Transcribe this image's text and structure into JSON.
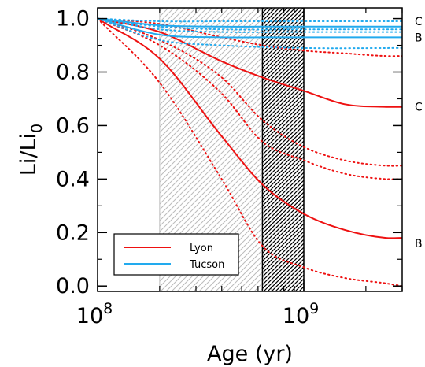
{
  "chart_data": {
    "type": "line",
    "xlabel": "Age (yr)",
    "ylabel": {
      "main": "Li/Li",
      "sub": "0"
    },
    "x_scale": "log",
    "xlim": [
      100000000,
      3000000000
    ],
    "ylim": [
      -0.02,
      1.04
    ],
    "x_ticks": [
      {
        "value": 100000000,
        "base": "10",
        "exp": "8"
      },
      {
        "value": 1000000000,
        "base": "10",
        "exp": "9"
      }
    ],
    "y_ticks": [
      {
        "value": 0.0,
        "label": "0.0"
      },
      {
        "value": 0.2,
        "label": "0.2"
      },
      {
        "value": 0.4,
        "label": "0.4"
      },
      {
        "value": 0.6,
        "label": "0.6"
      },
      {
        "value": 0.8,
        "label": "0.8"
      },
      {
        "value": 1.0,
        "label": "1.0"
      }
    ],
    "colors": {
      "lyon": "#ee1111",
      "tucson": "#22aaee",
      "light_hatch": "#bbbbbb",
      "dark_hatch": "#000000"
    },
    "regions": [
      {
        "kind": "light-hatch",
        "x": [
          200000000,
          630000000
        ]
      },
      {
        "kind": "dark-hatch",
        "x": [
          630000000,
          1000000000
        ]
      }
    ],
    "legend": {
      "position": "bottom-left",
      "entries": [
        {
          "name": "Lyon",
          "color": "#ee1111"
        },
        {
          "name": "Tucson",
          "color": "#22aaee"
        }
      ]
    },
    "series": [
      {
        "family": "lyon",
        "style": "solid",
        "tag": "C",
        "x": [
          100000000,
          200000000,
          400000000,
          630000000,
          1000000000,
          1580000000,
          2500000000,
          3000000000
        ],
        "y": [
          1.0,
          0.95,
          0.84,
          0.78,
          0.73,
          0.68,
          0.67,
          0.67
        ]
      },
      {
        "family": "lyon",
        "style": "solid",
        "tag": "B",
        "x": [
          100000000,
          200000000,
          400000000,
          630000000,
          1000000000,
          1580000000,
          2500000000,
          3000000000
        ],
        "y": [
          1.0,
          0.85,
          0.56,
          0.38,
          0.27,
          0.21,
          0.18,
          0.18
        ]
      },
      {
        "family": "lyon",
        "style": "dotted",
        "x": [
          100000000,
          200000000,
          400000000,
          630000000,
          1000000000,
          1580000000,
          2500000000,
          3000000000
        ],
        "y": [
          1.0,
          0.98,
          0.93,
          0.9,
          0.88,
          0.87,
          0.86,
          0.86
        ]
      },
      {
        "family": "lyon",
        "style": "dotted",
        "x": [
          100000000,
          200000000,
          400000000,
          630000000,
          1000000000,
          1580000000,
          2500000000,
          3000000000
        ],
        "y": [
          1.0,
          0.92,
          0.78,
          0.62,
          0.52,
          0.47,
          0.45,
          0.45
        ]
      },
      {
        "family": "lyon",
        "style": "dotted",
        "x": [
          100000000,
          200000000,
          400000000,
          630000000,
          1000000000,
          1580000000,
          2500000000,
          3000000000
        ],
        "y": [
          1.0,
          0.9,
          0.72,
          0.54,
          0.47,
          0.42,
          0.4,
          0.4
        ]
      },
      {
        "family": "lyon",
        "style": "dotted",
        "x": [
          100000000,
          200000000,
          400000000,
          630000000,
          1000000000,
          1580000000,
          2500000000,
          3000000000
        ],
        "y": [
          1.0,
          0.76,
          0.4,
          0.15,
          0.07,
          0.03,
          0.01,
          0.0
        ]
      },
      {
        "family": "tucson",
        "style": "solid",
        "tag": "C",
        "x": [
          100000000,
          200000000,
          400000000,
          630000000,
          1000000000,
          2000000000,
          3000000000
        ],
        "y": [
          1.0,
          0.975,
          0.97,
          0.97,
          0.97,
          0.97,
          0.97
        ]
      },
      {
        "family": "tucson",
        "style": "solid",
        "tag": "B",
        "x": [
          100000000,
          200000000,
          400000000,
          630000000,
          1000000000,
          2000000000,
          3000000000
        ],
        "y": [
          1.0,
          0.94,
          0.93,
          0.93,
          0.93,
          0.93,
          0.93
        ]
      },
      {
        "family": "tucson",
        "style": "dotted",
        "x": [
          100000000,
          200000000,
          400000000,
          1000000000,
          3000000000
        ],
        "y": [
          1.0,
          0.99,
          0.99,
          0.99,
          0.99
        ]
      },
      {
        "family": "tucson",
        "style": "dotted",
        "x": [
          100000000,
          200000000,
          400000000,
          1000000000,
          3000000000
        ],
        "y": [
          1.0,
          0.97,
          0.96,
          0.96,
          0.96
        ]
      },
      {
        "family": "tucson",
        "style": "dotted",
        "x": [
          100000000,
          200000000,
          400000000,
          1000000000,
          3000000000
        ],
        "y": [
          1.0,
          0.96,
          0.95,
          0.95,
          0.95
        ]
      },
      {
        "family": "tucson",
        "style": "dotted",
        "x": [
          100000000,
          200000000,
          400000000,
          1000000000,
          3000000000
        ],
        "y": [
          1.0,
          0.92,
          0.9,
          0.89,
          0.89
        ]
      }
    ],
    "side_labels": [
      {
        "text": "C",
        "y": 0.99
      },
      {
        "text": "B",
        "y": 0.93
      },
      {
        "text": "C",
        "y": 0.67
      },
      {
        "text": "B",
        "y": 0.16
      }
    ]
  }
}
